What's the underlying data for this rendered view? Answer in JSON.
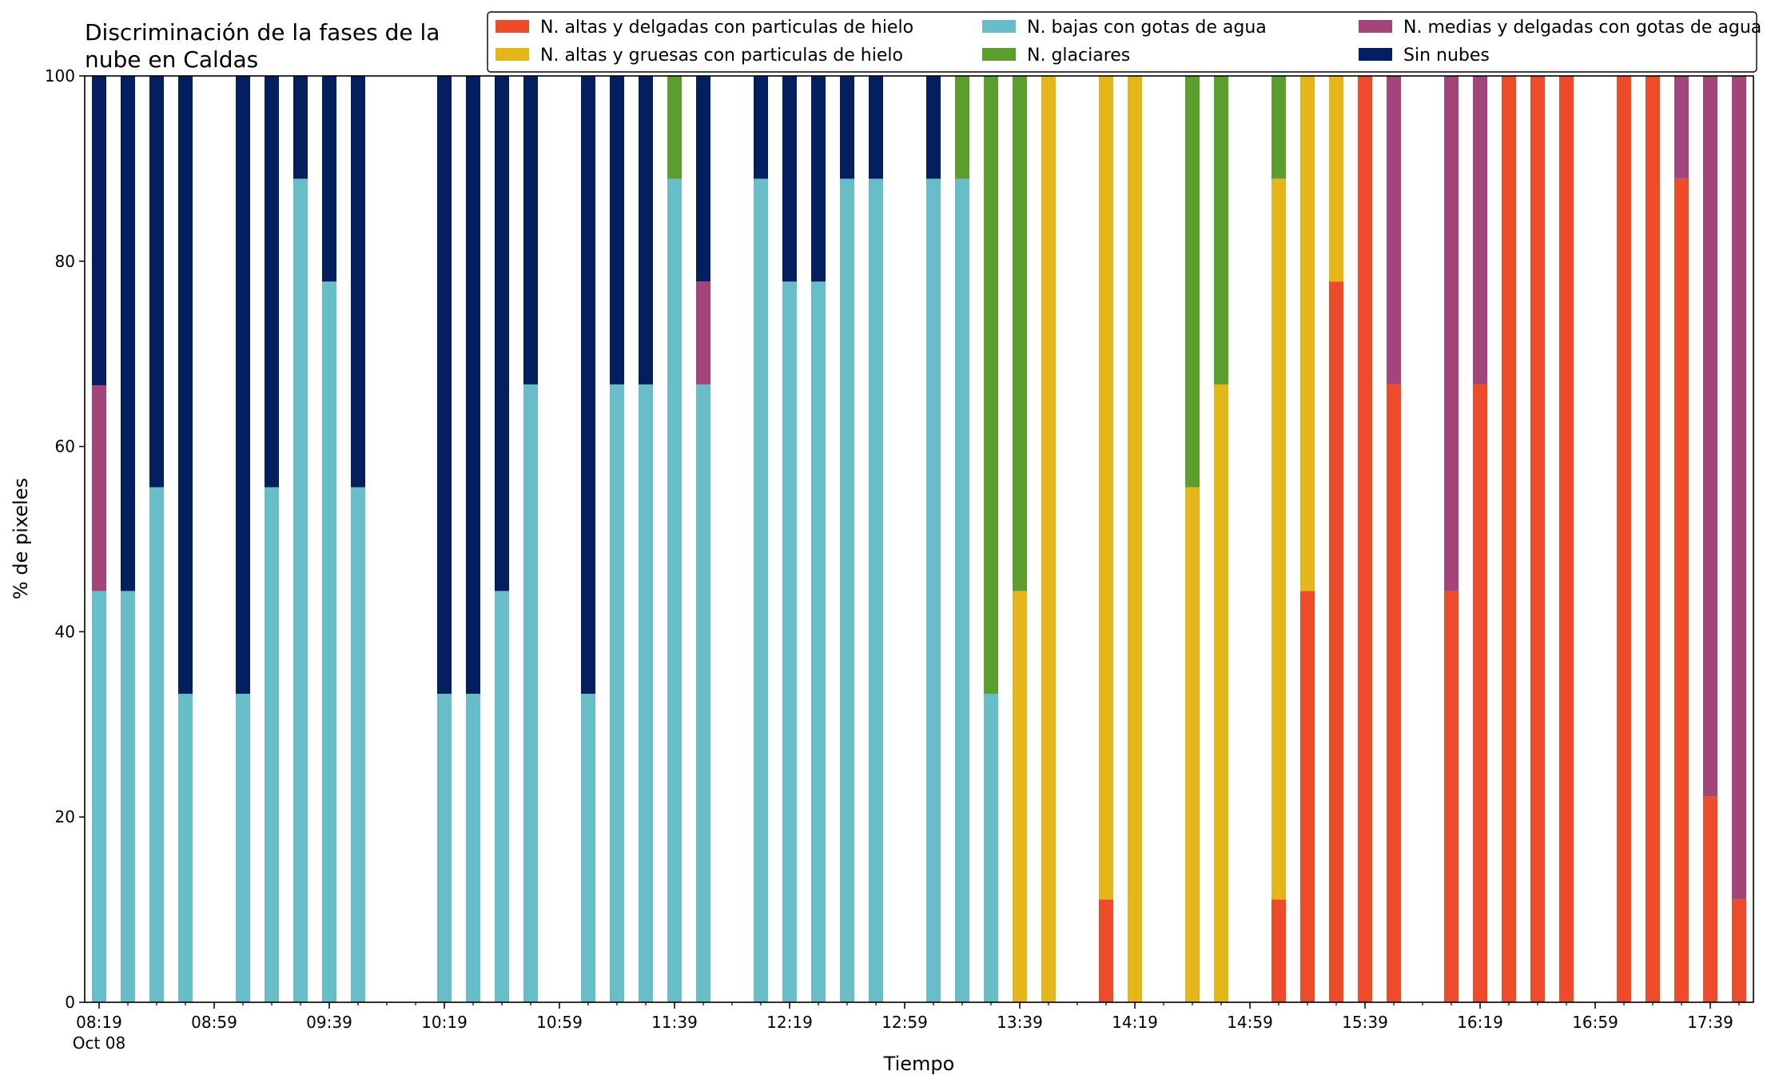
{
  "chart_data": {
    "type": "bar",
    "stacked": true,
    "title_lines": [
      "Discriminación de la fases de la",
      "nube en Caldas"
    ],
    "xlabel": "Tiempo",
    "ylabel": "% de pixeles",
    "ylim": [
      0,
      100
    ],
    "yticks": [
      0,
      20,
      40,
      60,
      80,
      100
    ],
    "xlim": [
      "08:14",
      "17:54"
    ],
    "xticks_major": [
      {
        "time": "08:19",
        "label": "08:19",
        "sublabel": "Oct 08"
      },
      {
        "time": "08:59",
        "label": "08:59"
      },
      {
        "time": "09:39",
        "label": "09:39"
      },
      {
        "time": "10:19",
        "label": "10:19"
      },
      {
        "time": "10:59",
        "label": "10:59"
      },
      {
        "time": "11:39",
        "label": "11:39"
      },
      {
        "time": "12:19",
        "label": "12:19"
      },
      {
        "time": "12:59",
        "label": "12:59"
      },
      {
        "time": "13:39",
        "label": "13:39"
      },
      {
        "time": "14:19",
        "label": "14:19"
      },
      {
        "time": "14:59",
        "label": "14:59"
      },
      {
        "time": "15:39",
        "label": "15:39"
      },
      {
        "time": "16:19",
        "label": "16:19"
      },
      {
        "time": "16:59",
        "label": "16:59"
      },
      {
        "time": "17:39",
        "label": "17:39"
      }
    ],
    "minor_tick_step_minutes": 10,
    "bar_width_minutes": 5,
    "grid": false,
    "legend_position": "top-right",
    "series": [
      {
        "key": "alt_delg",
        "name": "N. altas y delgadas con particulas de hielo",
        "color": "#ee4b2b"
      },
      {
        "key": "alt_grue",
        "name": "N. altas y gruesas con particulas de hielo",
        "color": "#e4b61a"
      },
      {
        "key": "bajas",
        "name": "N. bajas con gotas de agua",
        "color": "#67bdc8"
      },
      {
        "key": "glac",
        "name": "N. glaciares",
        "color": "#5c9e2e"
      },
      {
        "key": "med",
        "name": "N. medias y delgadas con gotas de agua",
        "color": "#a3457a"
      },
      {
        "key": "sin",
        "name": "Sin nubes",
        "color": "#031f5f"
      }
    ],
    "stack_order": [
      "alt_delg",
      "alt_grue",
      "bajas",
      "glac",
      "med",
      "sin"
    ],
    "bars": [
      {
        "time": "08:19",
        "bajas": 44.4,
        "med": 22.2,
        "sin": 33.4
      },
      {
        "time": "08:29",
        "bajas": 44.4,
        "sin": 55.6
      },
      {
        "time": "08:39",
        "bajas": 55.6,
        "sin": 44.4
      },
      {
        "time": "08:49",
        "bajas": 33.3,
        "sin": 66.7
      },
      {
        "time": "09:09",
        "bajas": 33.3,
        "sin": 66.7
      },
      {
        "time": "09:19",
        "bajas": 55.6,
        "sin": 44.4
      },
      {
        "time": "09:29",
        "bajas": 88.9,
        "sin": 11.1
      },
      {
        "time": "09:39",
        "bajas": 77.8,
        "sin": 22.2
      },
      {
        "time": "09:49",
        "bajas": 55.6,
        "sin": 44.4
      },
      {
        "time": "10:19",
        "bajas": 33.3,
        "sin": 66.7
      },
      {
        "time": "10:29",
        "bajas": 33.3,
        "sin": 66.7
      },
      {
        "time": "10:39",
        "bajas": 44.4,
        "sin": 55.6
      },
      {
        "time": "10:49",
        "bajas": 66.7,
        "sin": 33.3
      },
      {
        "time": "11:09",
        "bajas": 33.3,
        "sin": 66.7
      },
      {
        "time": "11:19",
        "bajas": 66.7,
        "sin": 33.3
      },
      {
        "time": "11:29",
        "bajas": 66.7,
        "sin": 33.3
      },
      {
        "time": "11:39",
        "bajas": 88.9,
        "glac": 11.1
      },
      {
        "time": "11:49",
        "bajas": 66.7,
        "med": 11.1,
        "sin": 22.2
      },
      {
        "time": "12:09",
        "bajas": 88.9,
        "sin": 11.1
      },
      {
        "time": "12:19",
        "bajas": 77.8,
        "sin": 22.2
      },
      {
        "time": "12:29",
        "bajas": 77.8,
        "sin": 22.2
      },
      {
        "time": "12:39",
        "bajas": 88.9,
        "sin": 11.1
      },
      {
        "time": "12:49",
        "bajas": 88.9,
        "sin": 11.1
      },
      {
        "time": "13:09",
        "bajas": 88.9,
        "sin": 11.1
      },
      {
        "time": "13:19",
        "bajas": 88.9,
        "glac": 11.1
      },
      {
        "time": "13:29",
        "bajas": 33.3,
        "glac": 66.7
      },
      {
        "time": "13:39",
        "alt_grue": 44.4,
        "glac": 55.6
      },
      {
        "time": "13:49",
        "alt_grue": 100
      },
      {
        "time": "14:09",
        "alt_delg": 11.1,
        "alt_grue": 88.9
      },
      {
        "time": "14:19",
        "alt_grue": 100
      },
      {
        "time": "14:39",
        "alt_grue": 55.6,
        "glac": 44.4
      },
      {
        "time": "14:49",
        "alt_grue": 66.7,
        "glac": 33.3
      },
      {
        "time": "15:09",
        "alt_delg": 11.1,
        "alt_grue": 77.8,
        "glac": 11.1
      },
      {
        "time": "15:19",
        "alt_delg": 44.4,
        "alt_grue": 55.6
      },
      {
        "time": "15:29",
        "alt_delg": 77.8,
        "alt_grue": 22.2
      },
      {
        "time": "15:39",
        "alt_delg": 100
      },
      {
        "time": "15:49",
        "alt_delg": 66.7,
        "med": 33.3
      },
      {
        "time": "16:09",
        "alt_delg": 44.4,
        "med": 55.6
      },
      {
        "time": "16:19",
        "alt_delg": 66.7,
        "med": 33.3
      },
      {
        "time": "16:29",
        "alt_delg": 100
      },
      {
        "time": "16:39",
        "alt_delg": 100
      },
      {
        "time": "16:49",
        "alt_delg": 100
      },
      {
        "time": "17:09",
        "alt_delg": 100
      },
      {
        "time": "17:19",
        "alt_delg": 100
      },
      {
        "time": "17:29",
        "alt_delg": 88.9,
        "med": 11.1
      },
      {
        "time": "17:39",
        "alt_delg": 22.2,
        "med": 77.8
      },
      {
        "time": "17:49",
        "alt_delg": 11.1,
        "med": 88.9
      }
    ]
  }
}
